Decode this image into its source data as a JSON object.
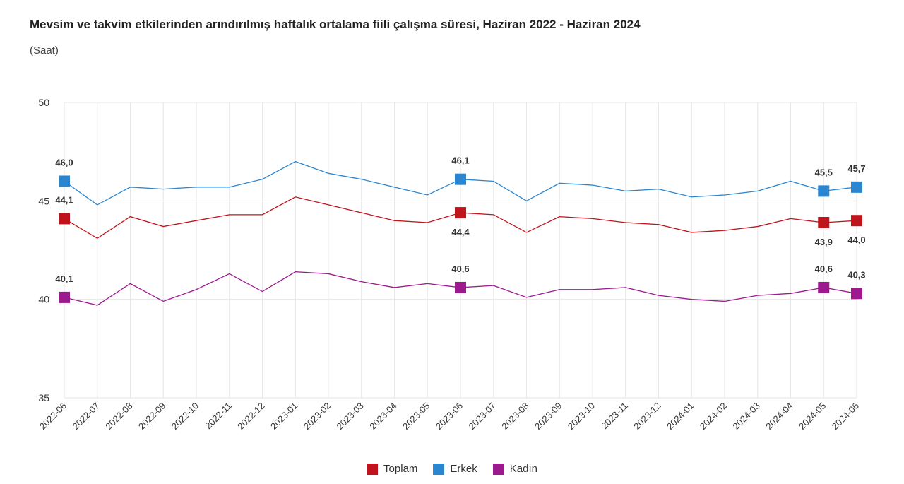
{
  "chart_data": {
    "type": "line",
    "title": "Mevsim ve takvim etkilerinden arındırılmış haftalık ortalama fiili çalışma süresi, Haziran 2022 - Haziran 2024",
    "subtitle": "(Saat)",
    "xlabel": "",
    "ylabel": "",
    "ylim": [
      35,
      50
    ],
    "yticks": [
      35,
      40,
      45,
      50
    ],
    "grid": true,
    "legend_position": "bottom",
    "categories": [
      "2022-06",
      "2022-07",
      "2022-08",
      "2022-09",
      "2022-10",
      "2022-11",
      "2022-12",
      "2023-01",
      "2023-02",
      "2023-03",
      "2023-04",
      "2023-05",
      "2023-06",
      "2023-07",
      "2023-08",
      "2023-09",
      "2023-10",
      "2023-11",
      "2023-12",
      "2024-01",
      "2024-02",
      "2024-03",
      "2024-04",
      "2024-05",
      "2024-06"
    ],
    "series": [
      {
        "name": "Toplam",
        "color": "#c0141c",
        "values": [
          44.1,
          43.1,
          44.2,
          43.7,
          44.0,
          44.3,
          44.3,
          45.2,
          44.8,
          44.4,
          44.0,
          43.9,
          44.4,
          44.3,
          43.4,
          44.2,
          44.1,
          43.9,
          43.8,
          43.4,
          43.5,
          43.7,
          44.1,
          43.9,
          44.0
        ],
        "data_labels": [
          {
            "index": 0,
            "text": "44,1",
            "pos": "above"
          },
          {
            "index": 12,
            "text": "44,4",
            "pos": "below"
          },
          {
            "index": 23,
            "text": "43,9",
            "pos": "below"
          },
          {
            "index": 24,
            "text": "44,0",
            "pos": "below"
          }
        ]
      },
      {
        "name": "Erkek",
        "color": "#2a86d1",
        "values": [
          46.0,
          44.8,
          45.7,
          45.6,
          45.7,
          45.7,
          46.1,
          47.0,
          46.4,
          46.1,
          45.7,
          45.3,
          46.1,
          46.0,
          45.0,
          45.9,
          45.8,
          45.5,
          45.6,
          45.2,
          45.3,
          45.5,
          46.0,
          45.5,
          45.7
        ],
        "data_labels": [
          {
            "index": 0,
            "text": "46,0",
            "pos": "above"
          },
          {
            "index": 12,
            "text": "46,1",
            "pos": "above"
          },
          {
            "index": 23,
            "text": "45,5",
            "pos": "above"
          },
          {
            "index": 24,
            "text": "45,7",
            "pos": "above"
          }
        ]
      },
      {
        "name": "Kadın",
        "color": "#9c1a8e",
        "values": [
          40.1,
          39.7,
          40.8,
          39.9,
          40.5,
          41.3,
          40.4,
          41.4,
          41.3,
          40.9,
          40.6,
          40.8,
          40.6,
          40.7,
          40.1,
          40.5,
          40.5,
          40.6,
          40.2,
          40.0,
          39.9,
          40.2,
          40.3,
          40.6,
          40.3
        ],
        "data_labels": [
          {
            "index": 0,
            "text": "40,1",
            "pos": "above"
          },
          {
            "index": 12,
            "text": "40,6",
            "pos": "above"
          },
          {
            "index": 23,
            "text": "40,6",
            "pos": "above"
          },
          {
            "index": 24,
            "text": "40,3",
            "pos": "above"
          }
        ]
      }
    ]
  }
}
